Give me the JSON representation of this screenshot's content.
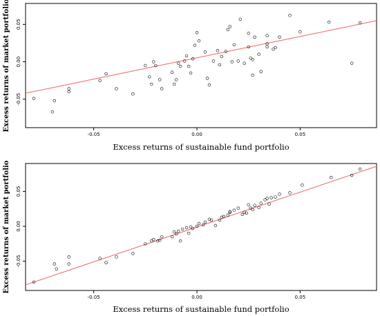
{
  "chart_data": [
    {
      "type": "scatter",
      "xlabel": "Excess returns of sustainable fund portfolio",
      "ylabel": "Excess returns of market portfolio",
      "xlim": [
        -0.083,
        0.087
      ],
      "ylim": [
        -0.088,
        0.078
      ],
      "x_ticks": [
        -0.05,
        0.0,
        0.05
      ],
      "x_tick_labels": [
        "-0.05",
        "0.00",
        "0.05"
      ],
      "y_ticks": [
        -0.05,
        0.0,
        0.05
      ],
      "y_tick_labels": [
        "-0.05",
        "0.00",
        "0.05"
      ],
      "fit_line": {
        "color": "#f07070",
        "x": [
          -0.083,
          0.087
        ],
        "y": [
          -0.042,
          0.055
        ]
      },
      "points": [
        [
          -0.079,
          -0.049
        ],
        [
          -0.069,
          -0.052
        ],
        [
          -0.07,
          -0.067
        ],
        [
          -0.062,
          -0.04
        ],
        [
          -0.062,
          -0.036
        ],
        [
          -0.047,
          -0.025
        ],
        [
          -0.044,
          -0.016
        ],
        [
          -0.039,
          -0.036
        ],
        [
          -0.031,
          -0.043
        ],
        [
          -0.025,
          -0.005
        ],
        [
          -0.023,
          -0.02
        ],
        [
          -0.022,
          -0.03
        ],
        [
          -0.021,
          0.0
        ],
        [
          -0.02,
          -0.005
        ],
        [
          -0.018,
          -0.024
        ],
        [
          -0.017,
          -0.036
        ],
        [
          -0.012,
          -0.014
        ],
        [
          -0.011,
          -0.03
        ],
        [
          -0.01,
          -0.024
        ],
        [
          -0.009,
          -0.002
        ],
        [
          -0.008,
          -0.006
        ],
        [
          -0.006,
          0.001
        ],
        [
          -0.005,
          0.008
        ],
        [
          -0.004,
          -0.006
        ],
        [
          -0.003,
          -0.015
        ],
        [
          -0.002,
          0.004
        ],
        [
          -0.001,
          0.022
        ],
        [
          0.0,
          0.039
        ],
        [
          0.001,
          0.028
        ],
        [
          0.004,
          0.013
        ],
        [
          0.005,
          -0.022
        ],
        [
          0.006,
          -0.031
        ],
        [
          0.008,
          0.001
        ],
        [
          0.01,
          0.015
        ],
        [
          0.011,
          -0.004
        ],
        [
          0.012,
          0.007
        ],
        [
          0.014,
          0.014
        ],
        [
          0.015,
          0.043
        ],
        [
          0.016,
          0.047
        ],
        [
          0.017,
          0.0
        ],
        [
          0.018,
          0.023
        ],
        [
          0.02,
          0.001
        ],
        [
          0.021,
          0.057
        ],
        [
          0.023,
          -0.002
        ],
        [
          0.025,
          0.02
        ],
        [
          0.025,
          0.038
        ],
        [
          0.026,
          0.005
        ],
        [
          0.027,
          0.003
        ],
        [
          0.027,
          -0.018
        ],
        [
          0.028,
          0.033
        ],
        [
          0.03,
          0.01
        ],
        [
          0.031,
          -0.013
        ],
        [
          0.034,
          0.02
        ],
        [
          0.034,
          0.024
        ],
        [
          0.034,
          0.035
        ],
        [
          0.037,
          0.017
        ],
        [
          0.038,
          0.019
        ],
        [
          0.04,
          0.033
        ],
        [
          0.045,
          0.062
        ],
        [
          0.05,
          0.04
        ],
        [
          0.064,
          0.053
        ],
        [
          0.075,
          -0.002
        ],
        [
          0.079,
          0.052
        ]
      ]
    },
    {
      "type": "scatter",
      "xlabel": "Excess returns of sustainable fund portfolio",
      "ylabel": "Excess returns of market portfolio",
      "xlim": [
        -0.083,
        0.087
      ],
      "ylim": [
        -0.092,
        0.09
      ],
      "x_ticks": [
        -0.05,
        0.0,
        0.05
      ],
      "x_tick_labels": [
        "-0.05",
        "0.00",
        "0.05"
      ],
      "y_ticks": [
        -0.05,
        0.0,
        0.05
      ],
      "y_tick_labels": [
        "-0.05",
        "0.00",
        "0.05"
      ],
      "fit_line": {
        "color": "#f07070",
        "x": [
          -0.083,
          0.087
        ],
        "y": [
          -0.084,
          0.086
        ]
      },
      "points": [
        [
          -0.079,
          -0.08
        ],
        [
          -0.069,
          -0.054
        ],
        [
          -0.068,
          -0.061
        ],
        [
          -0.062,
          -0.044
        ],
        [
          -0.062,
          -0.054
        ],
        [
          -0.047,
          -0.046
        ],
        [
          -0.044,
          -0.052
        ],
        [
          -0.039,
          -0.044
        ],
        [
          -0.031,
          -0.039
        ],
        [
          -0.025,
          -0.025
        ],
        [
          -0.022,
          -0.021
        ],
        [
          -0.021,
          -0.019
        ],
        [
          -0.019,
          -0.021
        ],
        [
          -0.018,
          -0.02
        ],
        [
          -0.017,
          -0.015
        ],
        [
          -0.012,
          -0.015
        ],
        [
          -0.011,
          -0.008
        ],
        [
          -0.01,
          -0.011
        ],
        [
          -0.009,
          -0.007
        ],
        [
          -0.008,
          -0.021
        ],
        [
          -0.007,
          -0.004
        ],
        [
          -0.005,
          -0.002
        ],
        [
          -0.004,
          -0.01
        ],
        [
          -0.003,
          -0.001
        ],
        [
          -0.002,
          -0.003
        ],
        [
          0.0,
          0.0
        ],
        [
          0.001,
          0.004
        ],
        [
          0.003,
          0.002
        ],
        [
          0.004,
          0.006
        ],
        [
          0.006,
          0.01
        ],
        [
          0.007,
          0.009
        ],
        [
          0.009,
          0.001
        ],
        [
          0.011,
          0.009
        ],
        [
          0.012,
          0.013
        ],
        [
          0.013,
          0.014
        ],
        [
          0.015,
          0.016
        ],
        [
          0.016,
          0.02
        ],
        [
          0.016,
          0.021
        ],
        [
          0.018,
          0.023
        ],
        [
          0.02,
          0.026
        ],
        [
          0.022,
          0.017
        ],
        [
          0.023,
          0.02
        ],
        [
          0.024,
          0.019
        ],
        [
          0.025,
          0.031
        ],
        [
          0.026,
          0.026
        ],
        [
          0.027,
          0.024
        ],
        [
          0.028,
          0.03
        ],
        [
          0.03,
          0.027
        ],
        [
          0.031,
          0.033
        ],
        [
          0.033,
          0.038
        ],
        [
          0.034,
          0.04
        ],
        [
          0.035,
          0.032
        ],
        [
          0.036,
          0.041
        ],
        [
          0.038,
          0.042
        ],
        [
          0.04,
          0.046
        ],
        [
          0.045,
          0.048
        ],
        [
          0.051,
          0.059
        ],
        [
          0.065,
          0.07
        ],
        [
          0.075,
          0.073
        ],
        [
          0.079,
          0.082
        ]
      ]
    }
  ]
}
